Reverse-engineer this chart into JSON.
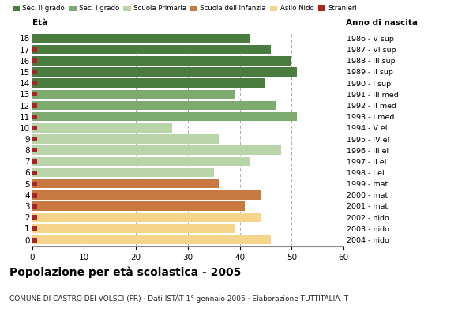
{
  "ages": [
    18,
    17,
    16,
    15,
    14,
    13,
    12,
    11,
    10,
    9,
    8,
    7,
    6,
    5,
    4,
    3,
    2,
    1,
    0
  ],
  "years": [
    "1986 - V sup",
    "1987 - VI sup",
    "1988 - III sup",
    "1989 - II sup",
    "1990 - I sup",
    "1991 - III med",
    "1992 - II med",
    "1993 - I med",
    "1994 - V el",
    "1995 - IV el",
    "1996 - III el",
    "1997 - II el",
    "1998 - I el",
    "1999 - mat",
    "2000 - mat",
    "2001 - mat",
    "2002 - nido",
    "2003 - nido",
    "2004 - nido"
  ],
  "bar_values": [
    42,
    46,
    50,
    51,
    45,
    39,
    47,
    51,
    27,
    36,
    48,
    42,
    35,
    36,
    44,
    41,
    44,
    39,
    46
  ],
  "stranieri": [
    0,
    1,
    1,
    2,
    1,
    2,
    1,
    1,
    1,
    1,
    1,
    1,
    1,
    1,
    2,
    1,
    2,
    2,
    2
  ],
  "categories": [
    "Sec. II grado",
    "Sec. I grado",
    "Scuola Primaria",
    "Scuola dell'Infanzia",
    "Asilo Nido"
  ],
  "bar_colors": {
    "Sec. II grado": "#4a7c3f",
    "Sec. I grado": "#7daa6f",
    "Scuola Primaria": "#b8d4a8",
    "Scuola dell'Infanzia": "#c87941",
    "Asilo Nido": "#f5d58a"
  },
  "age_category": {
    "18": "Sec. II grado",
    "17": "Sec. II grado",
    "16": "Sec. II grado",
    "15": "Sec. II grado",
    "14": "Sec. II grado",
    "13": "Sec. I grado",
    "12": "Sec. I grado",
    "11": "Sec. I grado",
    "10": "Scuola Primaria",
    "9": "Scuola Primaria",
    "8": "Scuola Primaria",
    "7": "Scuola Primaria",
    "6": "Scuola Primaria",
    "5": "Scuola dell'Infanzia",
    "4": "Scuola dell'Infanzia",
    "3": "Scuola dell'Infanzia",
    "2": "Asilo Nido",
    "1": "Asilo Nido",
    "0": "Asilo Nido"
  },
  "stranieri_color": "#aa2222",
  "stranieri_size": 4.5,
  "title": "Popolazione per età scolastica - 2005",
  "subtitle": "COMUNE DI CASTRO DEI VOLSCI (FR) · Dati ISTAT 1° gennaio 2005 · Elaborazione TUTTITALIA.IT",
  "xlabel_left": "Età",
  "xlabel_right": "Anno di nascita",
  "xlim": [
    0,
    60
  ],
  "xticks": [
    0,
    10,
    20,
    30,
    40,
    50,
    60
  ],
  "background_color": "#ffffff",
  "bar_height": 0.82
}
